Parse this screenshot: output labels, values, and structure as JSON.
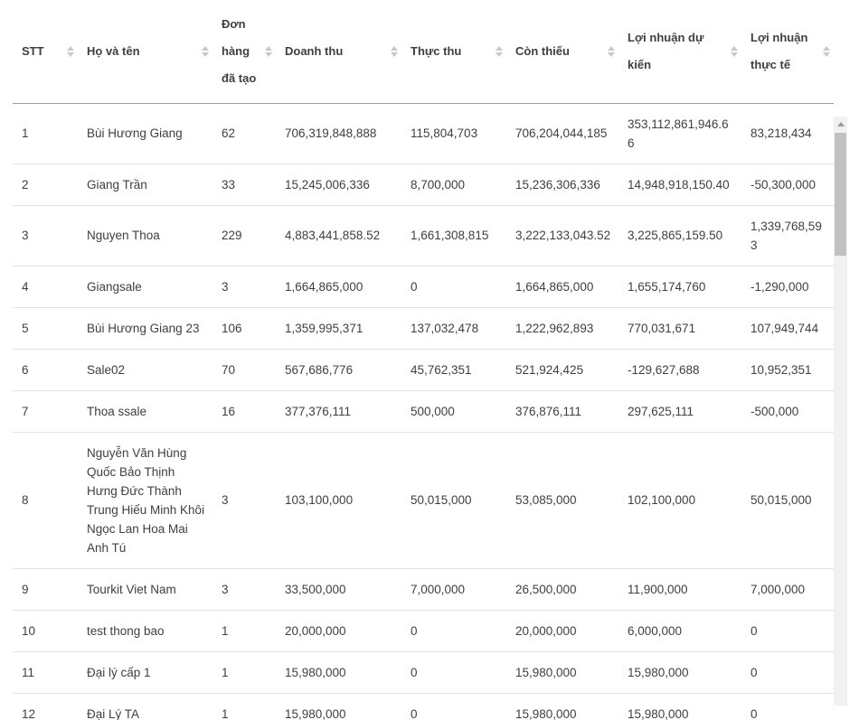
{
  "table": {
    "columns": [
      {
        "label": "STT",
        "sortable": true
      },
      {
        "label": "Họ và tên",
        "sortable": true
      },
      {
        "label": "Đơn hàng đã tạo",
        "sortable": true
      },
      {
        "label": "Doanh thu",
        "sortable": true
      },
      {
        "label": "Thực thu",
        "sortable": true
      },
      {
        "label": "Còn thiếu",
        "sortable": true
      },
      {
        "label": "Lợi nhuận dự kiến",
        "sortable": true
      },
      {
        "label": "Lợi nhuận thực tế",
        "sortable": true
      }
    ],
    "rows": [
      [
        "1",
        "Bùi Hương Giang",
        "62",
        "706,319,848,888",
        "115,804,703",
        "706,204,044,185",
        "353,112,861,946.66",
        "83,218,434"
      ],
      [
        "2",
        "Giang Trần",
        "33",
        "15,245,006,336",
        "8,700,000",
        "15,236,306,336",
        "14,948,918,150.40",
        "-50,300,000"
      ],
      [
        "3",
        "Nguyen Thoa",
        "229",
        "4,883,441,858.52",
        "1,661,308,815",
        "3,222,133,043.52",
        "3,225,865,159.50",
        "1,339,768,593"
      ],
      [
        "4",
        "Giangsale",
        "3",
        "1,664,865,000",
        "0",
        "1,664,865,000",
        "1,655,174,760",
        "-1,290,000"
      ],
      [
        "5",
        "Bùi Hương Giang 23",
        "106",
        "1,359,995,371",
        "137,032,478",
        "1,222,962,893",
        "770,031,671",
        "107,949,744"
      ],
      [
        "6",
        "Sale02",
        "70",
        "567,686,776",
        "45,762,351",
        "521,924,425",
        "-129,627,688",
        "10,952,351"
      ],
      [
        "7",
        "Thoa ssale",
        "16",
        "377,376,111",
        "500,000",
        "376,876,111",
        "297,625,111",
        "-500,000"
      ],
      [
        "8",
        "Nguyễn Văn Hùng Quốc Bảo Thịnh Hưng Đức Thành Trung Hiếu Minh Khôi Ngọc Lan Hoa Mai Anh Tú",
        "3",
        "103,100,000",
        "50,015,000",
        "53,085,000",
        "102,100,000",
        "50,015,000"
      ],
      [
        "9",
        "Tourkit Viet Nam",
        "3",
        "33,500,000",
        "7,000,000",
        "26,500,000",
        "11,900,000",
        "7,000,000"
      ],
      [
        "10",
        "test thong bao",
        "1",
        "20,000,000",
        "0",
        "20,000,000",
        "6,000,000",
        "0"
      ],
      [
        "11",
        "Đại lý cấp 1",
        "1",
        "15,980,000",
        "0",
        "15,980,000",
        "15,980,000",
        "0"
      ],
      [
        "12",
        "Đại Lý TA",
        "1",
        "15,980,000",
        "0",
        "15,980,000",
        "15,980,000",
        "0"
      ]
    ]
  },
  "colors": {
    "header_text": "#3c4043",
    "body_text": "#3d4043",
    "header_border": "#9e9e9e",
    "row_border": "#e2e2e2",
    "sort_icon": "#c8c8c8",
    "scrollbar_track": "#f1f1f1",
    "scrollbar_thumb": "#c1c1c1"
  }
}
